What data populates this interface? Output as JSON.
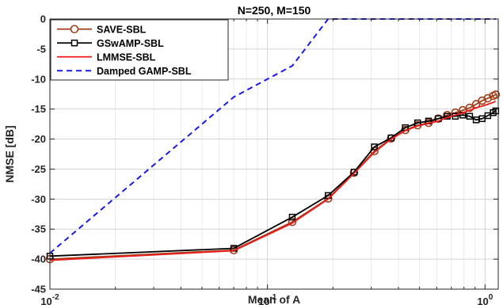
{
  "chart_data": {
    "type": "line",
    "title": "N=250, M=150",
    "xlabel": "Mean of A",
    "ylabel": "NMSE [dB]",
    "xscale": "log",
    "xlim": [
      0.01,
      1.15
    ],
    "ylim": [
      -45,
      0
    ],
    "grid": true,
    "legend_position": "top-left",
    "x_ticks": [
      {
        "value": 0.01,
        "base": "10",
        "exp": "-2"
      },
      {
        "value": 0.1,
        "base": "10",
        "exp": "-1"
      },
      {
        "value": 1,
        "base": "10",
        "exp": "0"
      }
    ],
    "y_ticks": [
      {
        "value": 0,
        "label": "0"
      },
      {
        "value": -5,
        "label": "-5"
      },
      {
        "value": -10,
        "label": "-10"
      },
      {
        "value": -15,
        "label": "-15"
      },
      {
        "value": -20,
        "label": "-20"
      },
      {
        "value": -25,
        "label": "-25"
      },
      {
        "value": -30,
        "label": "-30"
      },
      {
        "value": -35,
        "label": "-35"
      },
      {
        "value": -40,
        "label": "-40"
      },
      {
        "value": -45,
        "label": "-45"
      }
    ],
    "series": [
      {
        "name": "SAVE-SBL",
        "color": "#a0401a",
        "dash": "solid",
        "marker": "circle",
        "x": [
          0.01,
          0.07,
          0.13,
          0.19,
          0.25,
          0.31,
          0.37,
          0.43,
          0.49,
          0.55,
          0.61,
          0.67,
          0.73,
          0.79,
          0.85,
          0.91,
          0.97,
          1.03,
          1.09,
          1.12
        ],
        "y": [
          -40.0,
          -38.5,
          -33.8,
          -29.9,
          -25.6,
          -22.0,
          -19.9,
          -18.5,
          -17.7,
          -17.3,
          -16.6,
          -16.0,
          -15.6,
          -15.2,
          -14.8,
          -14.2,
          -13.6,
          -13.2,
          -12.8,
          -12.6
        ]
      },
      {
        "name": "GSwAMP-SBL",
        "color": "#000000",
        "dash": "solid",
        "marker": "square",
        "x": [
          0.01,
          0.07,
          0.13,
          0.19,
          0.25,
          0.31,
          0.37,
          0.43,
          0.49,
          0.55,
          0.61,
          0.67,
          0.73,
          0.79,
          0.85,
          0.91,
          0.97,
          1.03,
          1.09,
          1.12
        ],
        "y": [
          -39.5,
          -38.2,
          -33.0,
          -29.4,
          -25.5,
          -21.3,
          -19.8,
          -18.1,
          -17.3,
          -17.0,
          -16.6,
          -16.2,
          -16.2,
          -16.0,
          -16.2,
          -16.8,
          -16.6,
          -16.1,
          -15.6,
          -15.3
        ]
      },
      {
        "name": "LMMSE-SBL",
        "color": "#ee1c1c",
        "dash": "solid",
        "marker": "none",
        "x": [
          0.01,
          0.07,
          0.13,
          0.19,
          0.25,
          0.31,
          0.37,
          0.43,
          0.49,
          0.55,
          0.61,
          0.67,
          0.73,
          0.79,
          0.85,
          0.91,
          0.97,
          1.03,
          1.09,
          1.12
        ],
        "y": [
          -40.2,
          -38.6,
          -34.0,
          -30.0,
          -25.7,
          -22.2,
          -20.0,
          -18.6,
          -17.8,
          -17.4,
          -17.0,
          -16.4,
          -16.0,
          -15.6,
          -15.2,
          -14.8,
          -14.5,
          -14.2,
          -13.9,
          -13.7
        ]
      },
      {
        "name": "Damped GAMP-SBL",
        "color": "#1a1ae6",
        "dash": "dashed",
        "marker": "none",
        "x": [
          0.01,
          0.07,
          0.13,
          0.19,
          0.25,
          0.31,
          0.37,
          0.43,
          0.49,
          0.55,
          0.61,
          0.67,
          0.73,
          0.79,
          0.85,
          0.91,
          0.97,
          1.03,
          1.09,
          1.12
        ],
        "y": [
          -39.0,
          -13.0,
          -7.8,
          0,
          0,
          0,
          0,
          0,
          0,
          0,
          0,
          0,
          0,
          0,
          0,
          0,
          0,
          0,
          0,
          0
        ]
      }
    ]
  }
}
